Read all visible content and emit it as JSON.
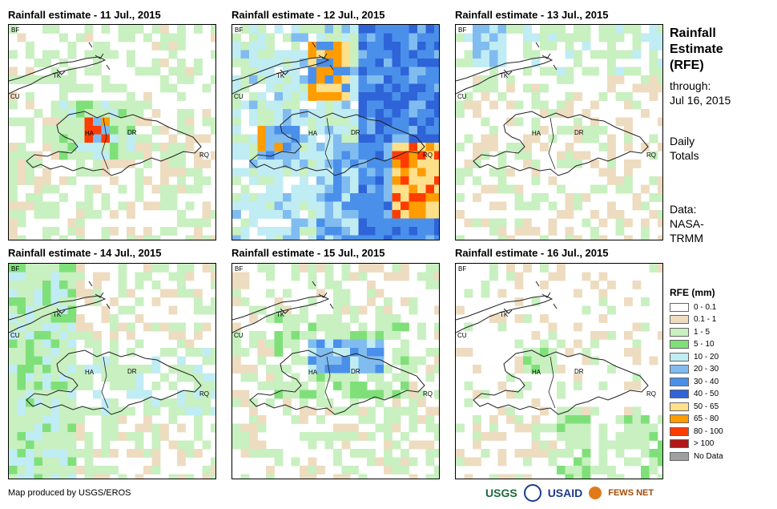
{
  "panels": [
    {
      "title": "Rainfall estimate - 11 Jul., 2015"
    },
    {
      "title": "Rainfall estimate - 12 Jul., 2015"
    },
    {
      "title": "Rainfall estimate - 13 Jul., 2015"
    },
    {
      "title": "Rainfall estimate - 14 Jul., 2015"
    },
    {
      "title": "Rainfall estimate - 15 Jul., 2015"
    },
    {
      "title": "Rainfall estimate - 16 Jul., 2015"
    }
  ],
  "map_labels": {
    "bf": "BF",
    "tk": "TK",
    "cu": "CU",
    "ha": "HA",
    "dr": "DR",
    "rq": "RQ"
  },
  "side": {
    "title_line1": "Rainfall",
    "title_line2": "Estimate",
    "title_line3": "(RFE)",
    "through": "through:",
    "date": "Jul 16, 2015",
    "daily1": "Daily",
    "daily2": "Totals",
    "data1": "Data:",
    "data2": "NASA-",
    "data3": "TRMM"
  },
  "legend": {
    "title": "RFE (mm)",
    "items": [
      {
        "label": "0 - 0.1",
        "color": "#ffffff"
      },
      {
        "label": "0.1 - 1",
        "color": "#eedcc0"
      },
      {
        "label": "1 - 5",
        "color": "#c8f0c0"
      },
      {
        "label": "5 - 10",
        "color": "#7fe07a"
      },
      {
        "label": "10 - 20",
        "color": "#c0ecf4"
      },
      {
        "label": "20 - 30",
        "color": "#80bcf0"
      },
      {
        "label": "30 - 40",
        "color": "#4a90ea"
      },
      {
        "label": "40 - 50",
        "color": "#2e64d8"
      },
      {
        "label": "50 - 65",
        "color": "#ffe08a"
      },
      {
        "label": "65 - 80",
        "color": "#ff9c00"
      },
      {
        "label": "80 - 100",
        "color": "#ff3c00"
      },
      {
        "label": "> 100",
        "color": "#b01818"
      },
      {
        "label": "No Data",
        "color": "#a0a0a0"
      }
    ]
  },
  "footer": {
    "credit": "Map produced by USGS/EROS",
    "logo_usgs": "USGS",
    "logo_usaid": "USAID",
    "logo_fews": "FEWS NET"
  }
}
